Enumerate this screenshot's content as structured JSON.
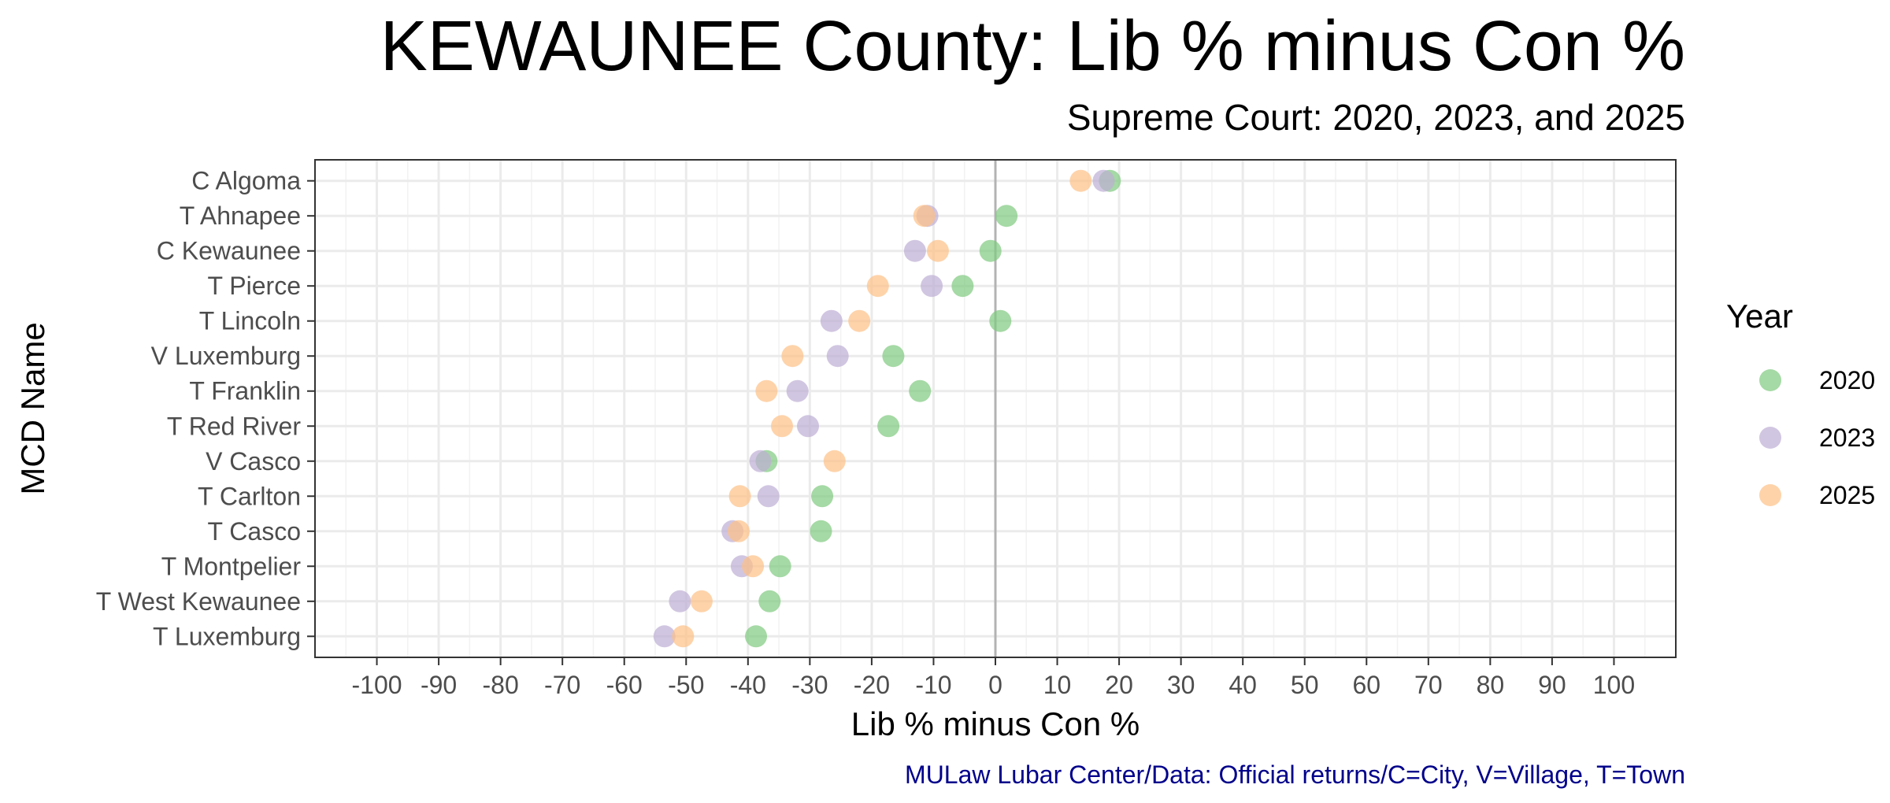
{
  "chart_data": {
    "type": "scatter",
    "title": "KEWAUNEE County: Lib % minus Con %",
    "subtitle": "Supreme Court: 2020, 2023, and 2025",
    "xlabel": "Lib % minus Con %",
    "ylabel": "MCD Name",
    "caption": "MULaw Lubar Center/Data: Official returns/C=City, V=Village, T=Town",
    "xlim": [
      -110,
      110
    ],
    "xticks": [
      -100,
      -90,
      -80,
      -70,
      -60,
      -50,
      -40,
      -30,
      -20,
      -10,
      0,
      10,
      20,
      30,
      40,
      50,
      60,
      70,
      80,
      90,
      100
    ],
    "grid": true,
    "legend_title": "Year",
    "legend_position": "right",
    "categories": [
      "C Algoma",
      "T Ahnapee",
      "C Kewaunee",
      "T Pierce",
      "T Lincoln",
      "V Luxemburg",
      "T Franklin",
      "T Red River",
      "V Casco",
      "T Carlton",
      "T Casco",
      "T Montpelier",
      "T West Kewaunee",
      "T Luxemburg"
    ],
    "series": [
      {
        "name": "2020",
        "color": "#7fc97f",
        "values": [
          18.5,
          1.8,
          -0.8,
          -5.3,
          0.8,
          -16.5,
          -12.2,
          -17.3,
          -37.0,
          -28.0,
          -28.2,
          -34.8,
          -36.5,
          -38.7
        ]
      },
      {
        "name": "2023",
        "color": "#beaed4",
        "values": [
          17.5,
          -11.0,
          -13.0,
          -10.3,
          -26.5,
          -25.5,
          -32.0,
          -30.3,
          -38.0,
          -36.7,
          -42.5,
          -41.0,
          -51.0,
          -53.5
        ]
      },
      {
        "name": "2025",
        "color": "#fdc086",
        "values": [
          13.8,
          -11.5,
          -9.3,
          -19.0,
          -22.0,
          -32.8,
          -37.0,
          -34.5,
          -26.0,
          -41.3,
          -41.5,
          -39.2,
          -47.5,
          -50.5
        ]
      }
    ]
  }
}
